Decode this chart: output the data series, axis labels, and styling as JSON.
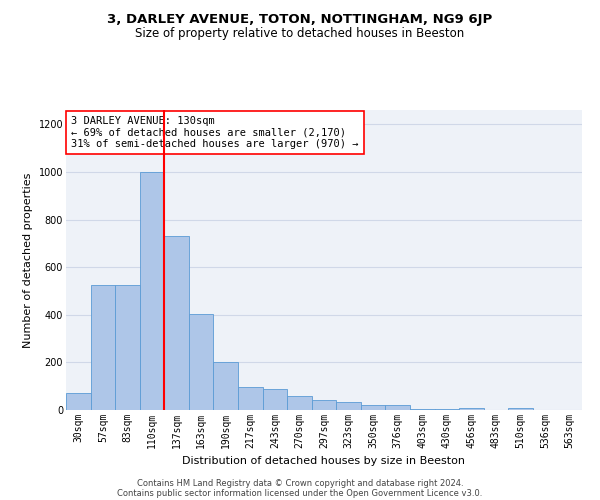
{
  "title": "3, DARLEY AVENUE, TOTON, NOTTINGHAM, NG9 6JP",
  "subtitle": "Size of property relative to detached houses in Beeston",
  "xlabel": "Distribution of detached houses by size in Beeston",
  "ylabel": "Number of detached properties",
  "categories": [
    "30sqm",
    "57sqm",
    "83sqm",
    "110sqm",
    "137sqm",
    "163sqm",
    "190sqm",
    "217sqm",
    "243sqm",
    "270sqm",
    "297sqm",
    "323sqm",
    "350sqm",
    "376sqm",
    "403sqm",
    "430sqm",
    "456sqm",
    "483sqm",
    "510sqm",
    "536sqm",
    "563sqm"
  ],
  "values": [
    70,
    525,
    525,
    1000,
    730,
    405,
    200,
    95,
    90,
    60,
    42,
    35,
    20,
    20,
    5,
    5,
    10,
    0,
    10,
    0,
    0
  ],
  "bar_color": "#aec6e8",
  "bar_edge_color": "#5b9bd5",
  "grid_color": "#d0d8e8",
  "vline_color": "red",
  "vline_linewidth": 1.5,
  "annotation_text": "3 DARLEY AVENUE: 130sqm\n← 69% of detached houses are smaller (2,170)\n31% of semi-detached houses are larger (970) →",
  "annotation_box_color": "white",
  "annotation_box_edge": "red",
  "footer_line1": "Contains HM Land Registry data © Crown copyright and database right 2024.",
  "footer_line2": "Contains public sector information licensed under the Open Government Licence v3.0.",
  "ylim": [
    0,
    1260
  ],
  "yticks": [
    0,
    200,
    400,
    600,
    800,
    1000,
    1200
  ],
  "title_fontsize": 9.5,
  "subtitle_fontsize": 8.5,
  "ylabel_fontsize": 8,
  "xlabel_fontsize": 8,
  "tick_fontsize": 7,
  "footer_fontsize": 6,
  "annotation_fontsize": 7.5,
  "bg_color": "#eef2f8"
}
